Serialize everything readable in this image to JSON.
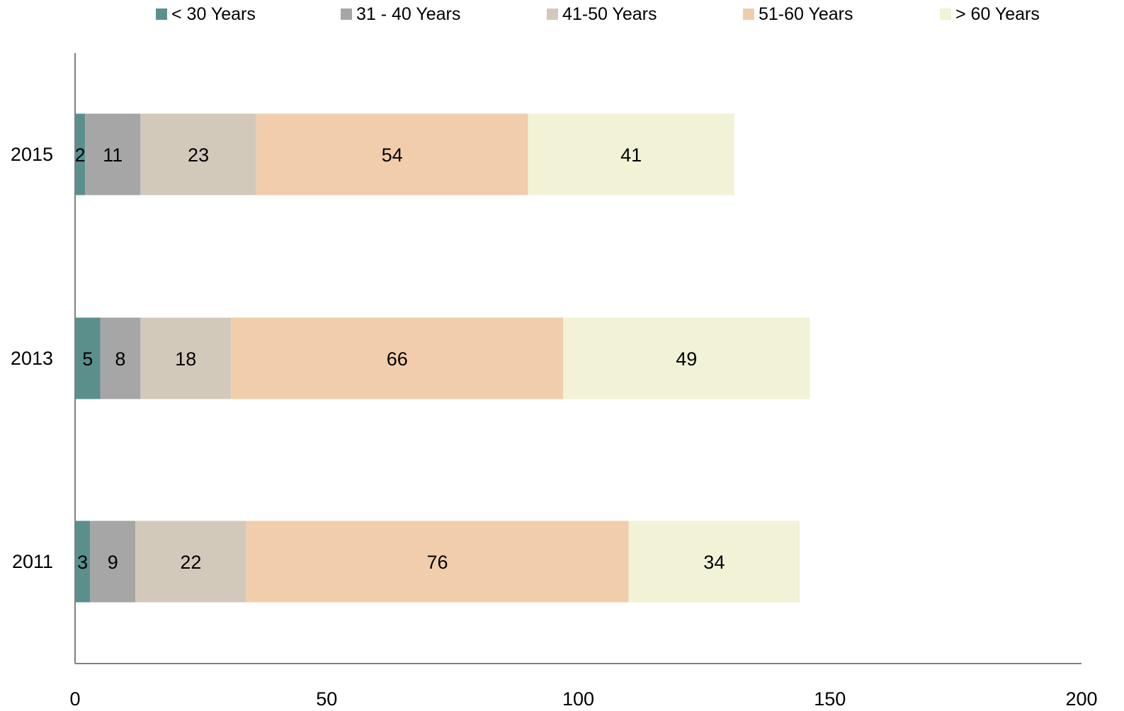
{
  "chart_data": {
    "type": "bar",
    "orientation": "horizontal",
    "stacked": true,
    "title": "",
    "xlabel": "",
    "ylabel": "",
    "categories": [
      "2015",
      "2013",
      "2011"
    ],
    "series": [
      {
        "name": "< 30 Years",
        "values": [
          2,
          5,
          3
        ],
        "color": "#5b8f8c"
      },
      {
        "name": "31 - 40 Years",
        "values": [
          11,
          8,
          9
        ],
        "color": "#a6a6a6"
      },
      {
        "name": "41-50 Years",
        "values": [
          23,
          18,
          22
        ],
        "color": "#d3c9bb"
      },
      {
        "name": "51-60 Years",
        "values": [
          54,
          66,
          76
        ],
        "color": "#f2cdab"
      },
      {
        "name": "> 60 Years",
        "values": [
          41,
          49,
          34
        ],
        "color": "#f1f2d6"
      }
    ],
    "xlim": [
      0,
      200
    ],
    "x_ticks": [
      "0",
      "50",
      "100",
      "150",
      "200"
    ],
    "grid": false,
    "legend_position": "top",
    "data_labels": true
  }
}
